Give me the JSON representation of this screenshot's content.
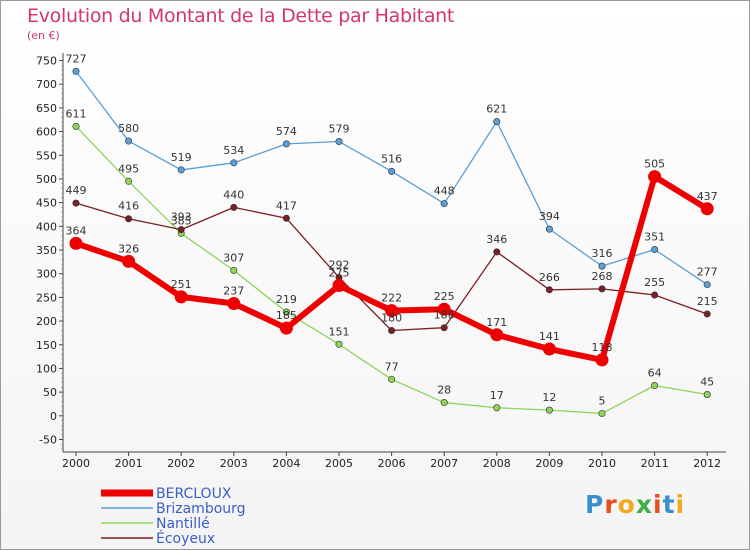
{
  "title": "Evolution du Montant de la Dette par Habitant",
  "subtitle": "(en €)",
  "logo": {
    "letters": [
      "P",
      "r",
      "o",
      "x",
      "i",
      "t",
      "i"
    ],
    "colors": [
      "#3a8fd0",
      "#e84d1c",
      "#f1a81f",
      "#3fae49",
      "#e84d1c",
      "#3a8fd0",
      "#f1a81f"
    ]
  },
  "chart_data": {
    "type": "line",
    "x": [
      "2000",
      "2001",
      "2002",
      "2003",
      "2004",
      "2005",
      "2006",
      "2007",
      "2008",
      "2009",
      "2010",
      "2011",
      "2012"
    ],
    "ylim": [
      -50,
      750
    ],
    "yticks": [
      -50,
      0,
      50,
      100,
      150,
      200,
      250,
      300,
      350,
      400,
      450,
      500,
      550,
      600,
      650,
      700,
      750
    ],
    "grid": false,
    "legend_position": "bottom-left",
    "series": [
      {
        "name": "Brizambourg",
        "color": "#5b9fd6",
        "values": [
          727,
          580,
          519,
          534,
          574,
          579,
          516,
          448,
          621,
          394,
          316,
          351,
          277
        ]
      },
      {
        "name": "Nantillé",
        "color": "#8fd45a",
        "values": [
          611,
          495,
          385,
          307,
          219,
          151,
          77,
          28,
          17,
          12,
          5,
          64,
          45
        ]
      },
      {
        "name": "Écoyeux",
        "color": "#7a1f22",
        "values": [
          449,
          416,
          393,
          440,
          417,
          292,
          180,
          186,
          346,
          266,
          268,
          255,
          215
        ]
      },
      {
        "name": "BERCLOUX",
        "color": "#ee0000",
        "values": [
          364,
          326,
          251,
          237,
          185,
          275,
          222,
          225,
          171,
          141,
          118,
          505,
          437
        ]
      }
    ],
    "legend_order": [
      "BERCLOUX",
      "Brizambourg",
      "Nantillé",
      "Écoyeux"
    ]
  }
}
